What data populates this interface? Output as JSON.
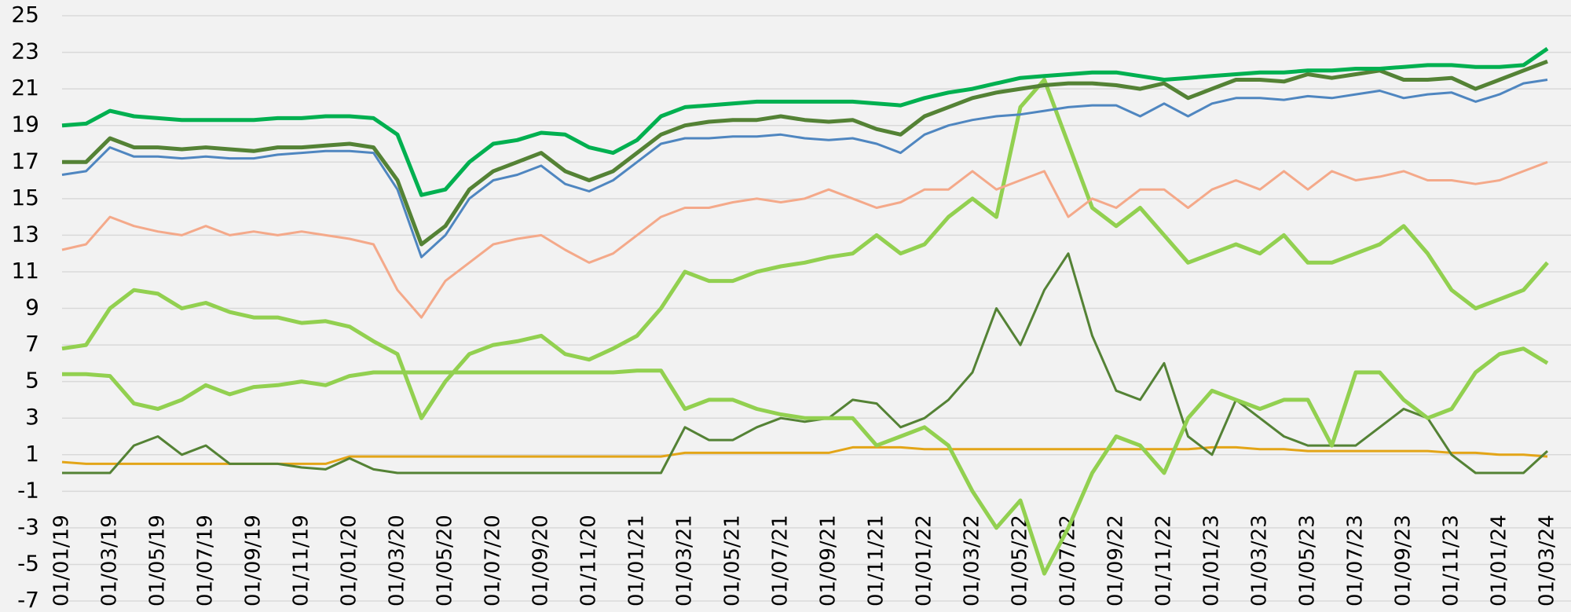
{
  "chart_data": {
    "type": "line",
    "categories": [
      "01/01/19",
      null,
      "01/03/19",
      null,
      "01/05/19",
      null,
      "01/07/19",
      null,
      "01/09/19",
      null,
      "01/11/19",
      null,
      "01/01/20",
      null,
      "01/03/20",
      null,
      "01/05/20",
      null,
      "01/07/20",
      null,
      "01/09/20",
      null,
      "01/11/20",
      null,
      "01/01/21",
      null,
      "01/03/21",
      null,
      "01/05/21",
      null,
      "01/07/21",
      null,
      "01/09/21",
      null,
      "01/11/21",
      null,
      "01/01/22",
      null,
      "01/03/22",
      null,
      "01/05/22",
      null,
      "01/07/22",
      null,
      "01/09/22",
      null,
      "01/11/22",
      null,
      "01/01/23",
      null,
      "01/03/23",
      null,
      "01/05/23",
      null,
      "01/07/23",
      null,
      "01/09/23",
      null,
      "01/11/23",
      null,
      "01/01/24",
      null,
      "01/03/24"
    ],
    "series": [
      {
        "color": "#e3a518",
        "linewidth": 3,
        "values": [
          0.6,
          0.5,
          0.5,
          0.5,
          0.5,
          0.5,
          0.5,
          0.5,
          0.5,
          0.5,
          0.5,
          0.5,
          0.9,
          0.9,
          0.9,
          0.9,
          0.9,
          0.9,
          0.9,
          0.9,
          0.9,
          0.9,
          0.9,
          0.9,
          0.9,
          0.9,
          1.1,
          1.1,
          1.1,
          1.1,
          1.1,
          1.1,
          1.1,
          1.4,
          1.4,
          1.4,
          1.3,
          1.3,
          1.3,
          1.3,
          1.3,
          1.3,
          1.3,
          1.3,
          1.3,
          1.3,
          1.3,
          1.3,
          1.4,
          1.4,
          1.3,
          1.3,
          1.2,
          1.2,
          1.2,
          1.2,
          1.2,
          1.2,
          1.1,
          1.1,
          1,
          1,
          0.9
        ]
      },
      {
        "color": "#548235",
        "linewidth": 3,
        "values": [
          0,
          0,
          0,
          1.5,
          2,
          1,
          1.5,
          0.5,
          0.5,
          0.5,
          0.3,
          0.2,
          0.8,
          0.2,
          0,
          0,
          0,
          0,
          0,
          0,
          0,
          0,
          0,
          0,
          0,
          0,
          2.5,
          1.8,
          1.8,
          2.5,
          3,
          2.8,
          3,
          4,
          3.8,
          2.5,
          3,
          4,
          5.5,
          9,
          7,
          10,
          12,
          7.5,
          4.5,
          4,
          6,
          2,
          1,
          4,
          3,
          2,
          1.5,
          1.5,
          1.5,
          2.5,
          3.5,
          3,
          1,
          0,
          0,
          0,
          1.2
        ]
      },
      {
        "color": "#92d050",
        "linewidth": 5,
        "values": [
          5.4,
          5.4,
          5.3,
          3.8,
          3.5,
          4,
          4.8,
          4.3,
          4.7,
          4.8,
          5,
          4.8,
          5.3,
          5.5,
          5.5,
          5.5,
          5.5,
          5.5,
          5.5,
          5.5,
          5.5,
          5.5,
          5.5,
          5.5,
          5.6,
          5.6,
          3.5,
          4,
          4,
          3.5,
          3.2,
          3,
          3,
          3,
          1.5,
          2,
          2.5,
          1.5,
          -1,
          -3,
          -1.5,
          -5.5,
          -3,
          0,
          2,
          1.5,
          0,
          3,
          4.5,
          4,
          3.5,
          4,
          4,
          1.5,
          5.5,
          5.5,
          4,
          3,
          3.5,
          5.5,
          6.5,
          6.8,
          6
        ]
      },
      {
        "color": "#92d050",
        "linewidth": 5,
        "values": [
          6.8,
          7,
          9,
          10,
          9.8,
          9,
          9.3,
          8.8,
          8.5,
          8.5,
          8.2,
          8.3,
          8,
          7.2,
          6.5,
          3,
          5,
          6.5,
          7,
          7.2,
          7.5,
          6.5,
          6.2,
          6.8,
          7.5,
          9,
          11,
          10.5,
          10.5,
          11,
          11.3,
          11.5,
          11.8,
          12,
          13,
          12,
          12.5,
          14,
          15,
          14,
          20,
          21.5,
          18,
          14.5,
          13.5,
          14.5,
          13,
          11.5,
          12,
          12.5,
          12,
          13,
          11.5,
          11.5,
          12,
          12.5,
          13.5,
          12,
          10,
          9,
          9.5,
          10,
          11.5
        ]
      },
      {
        "color": "#f4a98a",
        "linewidth": 3,
        "values": [
          12.2,
          12.5,
          14,
          13.5,
          13.2,
          13,
          13.5,
          13,
          13.2,
          13,
          13.2,
          13,
          12.8,
          12.5,
          10,
          8.5,
          10.5,
          11.5,
          12.5,
          12.8,
          13,
          12.2,
          11.5,
          12,
          13,
          14,
          14.5,
          14.5,
          14.8,
          15,
          14.8,
          15,
          15.5,
          15,
          14.5,
          14.8,
          15.5,
          15.5,
          16.5,
          15.5,
          16,
          16.5,
          14,
          15,
          14.5,
          15.5,
          15.5,
          14.5,
          15.5,
          16,
          15.5,
          16.5,
          15.5,
          16.5,
          16,
          16.2,
          16.5,
          16,
          16,
          15.8,
          16,
          16.5,
          17
        ]
      },
      {
        "color": "#4f86c0",
        "linewidth": 3,
        "values": [
          16.3,
          16.5,
          17.8,
          17.3,
          17.3,
          17.2,
          17.3,
          17.2,
          17.2,
          17.4,
          17.5,
          17.6,
          17.6,
          17.5,
          15.5,
          11.8,
          13,
          15,
          16,
          16.3,
          16.8,
          15.8,
          15.4,
          16,
          17,
          18,
          18.3,
          18.3,
          18.4,
          18.4,
          18.5,
          18.3,
          18.2,
          18.3,
          18,
          17.5,
          18.5,
          19,
          19.3,
          19.5,
          19.6,
          19.8,
          20,
          20.1,
          20.1,
          19.5,
          20.2,
          19.5,
          20.2,
          20.5,
          20.5,
          20.4,
          20.6,
          20.5,
          20.7,
          20.9,
          20.5,
          20.7,
          20.8,
          20.3,
          20.7,
          21.3,
          21.5
        ]
      },
      {
        "color": "#548235",
        "linewidth": 5,
        "values": [
          17,
          17,
          18.3,
          17.8,
          17.8,
          17.7,
          17.8,
          17.7,
          17.6,
          17.8,
          17.8,
          17.9,
          18,
          17.8,
          16,
          12.5,
          13.5,
          15.5,
          16.5,
          17,
          17.5,
          16.5,
          16,
          16.5,
          17.5,
          18.5,
          19,
          19.2,
          19.3,
          19.3,
          19.5,
          19.3,
          19.2,
          19.3,
          18.8,
          18.5,
          19.5,
          20,
          20.5,
          20.8,
          21,
          21.2,
          21.3,
          21.3,
          21.2,
          21,
          21.3,
          20.5,
          21,
          21.5,
          21.5,
          21.4,
          21.8,
          21.6,
          21.8,
          22,
          21.5,
          21.5,
          21.6,
          21,
          21.5,
          22,
          22.5
        ]
      },
      {
        "color": "#00b050",
        "linewidth": 5,
        "values": [
          19,
          19.1,
          19.8,
          19.5,
          19.4,
          19.3,
          19.3,
          19.3,
          19.3,
          19.4,
          19.4,
          19.5,
          19.5,
          19.4,
          18.5,
          15.2,
          15.5,
          17,
          18,
          18.2,
          18.6,
          18.5,
          17.8,
          17.5,
          18.2,
          19.5,
          20,
          20.1,
          20.2,
          20.3,
          20.3,
          20.3,
          20.3,
          20.3,
          20.2,
          20.1,
          20.5,
          20.8,
          21,
          21.3,
          21.6,
          21.7,
          21.8,
          21.9,
          21.9,
          21.7,
          21.5,
          21.6,
          21.7,
          21.8,
          21.9,
          21.9,
          22,
          22,
          22.1,
          22.1,
          22.2,
          22.3,
          22.3,
          22.2,
          22.2,
          22.3,
          23.2
        ]
      }
    ],
    "ylim": [
      -7,
      25
    ],
    "yticks": [
      -7,
      -5,
      -3,
      -1,
      1,
      3,
      5,
      7,
      9,
      11,
      13,
      15,
      17,
      19,
      21,
      23,
      25
    ],
    "grid": true
  }
}
